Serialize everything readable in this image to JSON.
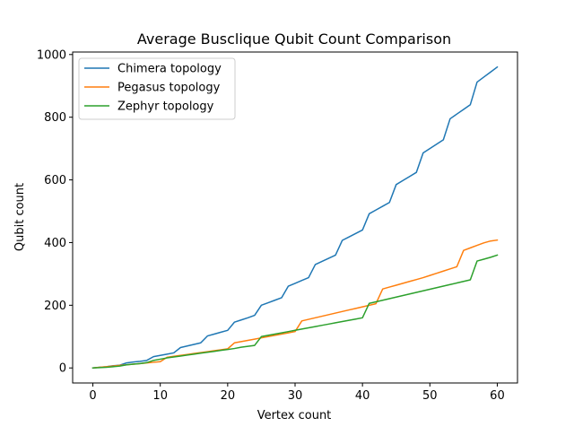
{
  "chart_data": {
    "type": "line",
    "title": "Average Busclique Qubit Count Comparison",
    "xlabel": "Vertex count",
    "ylabel": "Qubit count",
    "xlim": [
      -3,
      63
    ],
    "ylim": [
      -48,
      1008
    ],
    "xticks": [
      0,
      10,
      20,
      30,
      40,
      50,
      60
    ],
    "yticks": [
      0,
      200,
      400,
      600,
      800,
      1000
    ],
    "grid": false,
    "legend_position": "top-left",
    "series": [
      {
        "name": "Chimera topology",
        "color": "#1f77b4",
        "x": [
          0,
          1,
          2,
          3,
          4,
          5,
          6,
          7,
          8,
          9,
          10,
          11,
          12,
          13,
          14,
          15,
          16,
          17,
          18,
          19,
          20,
          21,
          22,
          23,
          24,
          25,
          26,
          27,
          28,
          29,
          30,
          31,
          32,
          33,
          34,
          35,
          36,
          37,
          38,
          39,
          40,
          41,
          42,
          43,
          44,
          45,
          46,
          47,
          48,
          49,
          50,
          51,
          52,
          53,
          54,
          55,
          56,
          57,
          58,
          59,
          60
        ],
        "y": [
          0,
          2,
          4,
          7,
          9,
          16,
          19,
          21,
          24,
          36,
          40,
          44,
          48,
          65,
          70,
          75,
          80,
          102,
          108,
          114,
          120,
          146,
          153,
          160,
          168,
          200,
          208,
          216,
          224,
          261,
          270,
          279,
          288,
          330,
          340,
          350,
          360,
          407,
          418,
          429,
          440,
          492,
          504,
          516,
          528,
          585,
          598,
          611,
          624,
          686,
          700,
          714,
          728,
          795,
          810,
          825,
          840,
          912,
          928,
          944,
          960
        ]
      },
      {
        "name": "Pegasus topology",
        "color": "#ff7f0e",
        "x": [
          0,
          1,
          2,
          3,
          4,
          5,
          6,
          7,
          8,
          9,
          10,
          11,
          12,
          13,
          14,
          15,
          16,
          17,
          18,
          19,
          20,
          21,
          22,
          23,
          24,
          25,
          26,
          27,
          28,
          29,
          30,
          31,
          32,
          33,
          34,
          35,
          36,
          37,
          38,
          39,
          40,
          41,
          42,
          43,
          44,
          45,
          46,
          47,
          48,
          49,
          50,
          51,
          52,
          53,
          54,
          55,
          56,
          57,
          58,
          59,
          60
        ],
        "y": [
          0,
          2,
          4,
          6,
          8,
          10,
          12,
          14,
          16,
          18,
          20,
          34,
          37,
          40,
          43,
          46,
          49,
          52,
          55,
          58,
          61,
          80,
          84,
          88,
          92,
          96,
          100,
          104,
          108,
          112,
          116,
          150,
          155,
          160,
          165,
          170,
          175,
          180,
          185,
          190,
          195,
          200,
          205,
          252,
          258,
          264,
          270,
          276,
          282,
          288,
          295,
          302,
          309,
          316,
          323,
          375,
          383,
          391,
          399,
          405,
          408
        ]
      },
      {
        "name": "Zephyr topology",
        "color": "#2ca02c",
        "x": [
          0,
          1,
          2,
          3,
          4,
          5,
          6,
          7,
          8,
          9,
          10,
          11,
          12,
          13,
          14,
          15,
          16,
          17,
          18,
          19,
          20,
          21,
          22,
          23,
          24,
          25,
          26,
          27,
          28,
          29,
          30,
          31,
          32,
          33,
          34,
          35,
          36,
          37,
          38,
          39,
          40,
          41,
          42,
          43,
          44,
          45,
          46,
          47,
          48,
          49,
          50,
          51,
          52,
          53,
          54,
          55,
          56,
          57,
          58,
          59,
          60
        ],
        "y": [
          0,
          1,
          2,
          4,
          6,
          10,
          12,
          14,
          17,
          24,
          28,
          32,
          35,
          38,
          41,
          44,
          47,
          50,
          53,
          56,
          59,
          62,
          66,
          69,
          72,
          100,
          104,
          108,
          112,
          116,
          120,
          124,
          128,
          132,
          136,
          140,
          144,
          148,
          152,
          156,
          160,
          206,
          211,
          216,
          221,
          226,
          231,
          236,
          241,
          246,
          251,
          256,
          261,
          266,
          271,
          276,
          281,
          341,
          347,
          353,
          360
        ]
      }
    ]
  }
}
